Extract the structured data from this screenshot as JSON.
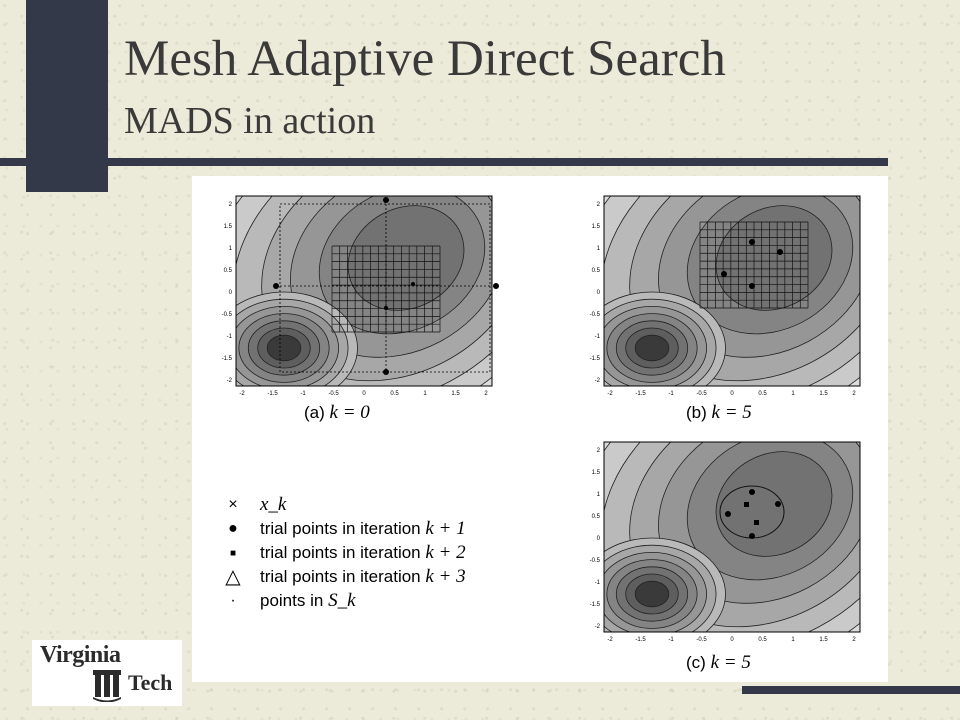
{
  "slide": {
    "title": "Mesh Adaptive Direct Search",
    "subtitle": "MADS in action"
  },
  "figure": {
    "panel_a_caption": "(a)",
    "panel_a_k": "k = 0",
    "panel_b_caption": "(b)",
    "panel_b_k": "k = 5",
    "panel_c_caption": "(c)",
    "panel_c_k": "k = 5",
    "x_ticks": [
      "-2",
      "-1.5",
      "-1",
      "-0.5",
      "0",
      "0.5",
      "1",
      "1.5",
      "2"
    ],
    "y_ticks": [
      "2",
      "1.5",
      "1",
      "0.5",
      "0",
      "-0.5",
      "-1",
      "-1.5",
      "-2"
    ]
  },
  "legend": {
    "items": [
      {
        "symbol": "×",
        "icon": "cross-icon",
        "text": "",
        "math": "x_k"
      },
      {
        "symbol": "●",
        "icon": "filled-circle-icon",
        "text": "trial points in iteration",
        "math": "k + 1"
      },
      {
        "symbol": "■",
        "icon": "filled-square-icon",
        "text": "trial points in iteration",
        "math": "k + 2"
      },
      {
        "symbol": "△",
        "icon": "triangle-icon",
        "text": "trial points in iteration",
        "math": "k + 3"
      },
      {
        "symbol": "·",
        "icon": "small-dot-icon",
        "text": "points in",
        "math": "S_k"
      }
    ]
  },
  "logo": {
    "top": "Virginia",
    "bottom": "Tech"
  },
  "colors": {
    "accent_bar": "#343949",
    "background": "#ecebd9"
  }
}
